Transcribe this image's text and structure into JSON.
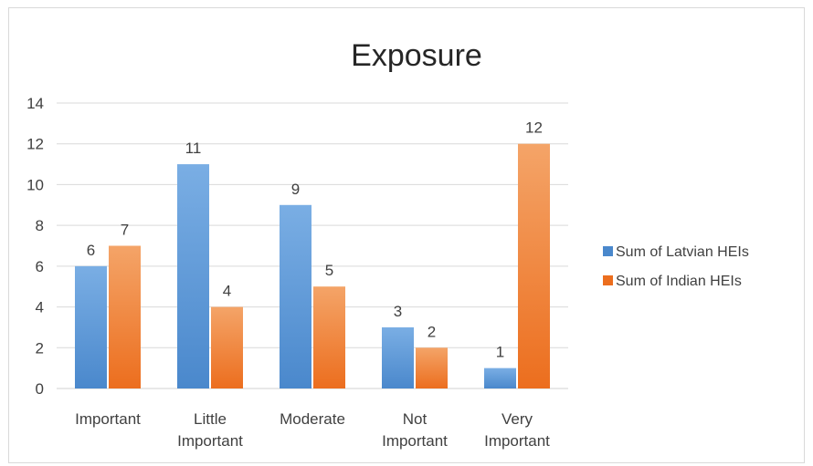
{
  "chart_data": {
    "type": "bar",
    "title": "Exposure",
    "categories": [
      [
        "Important"
      ],
      [
        "Little",
        "Important"
      ],
      [
        "Moderate"
      ],
      [
        "Not",
        "Important"
      ],
      [
        "Very",
        "Important"
      ]
    ],
    "series": [
      {
        "name": "Sum of Latvian HEIs",
        "values": [
          6,
          11,
          9,
          3,
          1
        ],
        "color_top": "#7aaee4",
        "color_bottom": "#4a88cc"
      },
      {
        "name": "Sum of Indian HEIs",
        "values": [
          7,
          4,
          5,
          2,
          12
        ],
        "color_top": "#f4a468",
        "color_bottom": "#ec6e1e"
      }
    ],
    "ylim": [
      0,
      14
    ],
    "yticks": [
      0,
      2,
      4,
      6,
      8,
      10,
      12,
      14
    ],
    "grid": true,
    "legend_position": "right"
  }
}
